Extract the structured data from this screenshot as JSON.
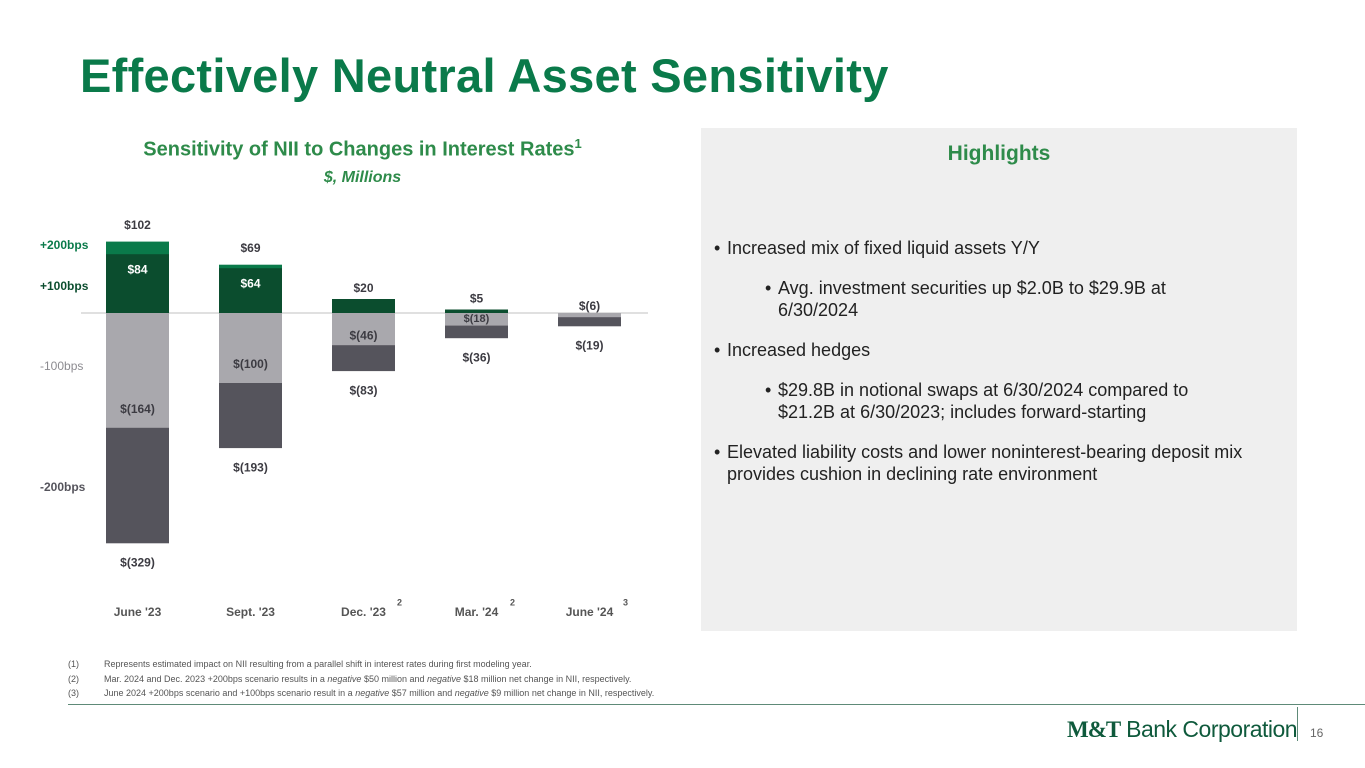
{
  "title": "Effectively Neutral Asset Sensitivity",
  "chart_data": {
    "type": "bar",
    "title": "Sensitivity of NII to Changes in Interest Rates",
    "title_footnote": "1",
    "subtitle": "$, Millions",
    "categories": [
      "June '23",
      "Sept. '23",
      "Dec. '23",
      "Mar. '24",
      "June '24"
    ],
    "category_footnotes": [
      null,
      null,
      "2",
      "2",
      "3"
    ],
    "ylim": [
      -360,
      110
    ],
    "series": [
      {
        "name": "+200bps",
        "color": "#0a7a4a",
        "values": [
          102,
          69,
          null,
          null,
          null
        ],
        "value_labels": [
          "$102",
          "$69",
          null,
          null,
          null
        ]
      },
      {
        "name": "+100bps",
        "color": "#0b4d2e",
        "values": [
          84,
          64,
          20,
          5,
          null
        ],
        "value_labels": [
          "$84",
          "$64",
          "$20",
          "$5",
          null
        ]
      },
      {
        "name": "-100bps",
        "color": "#a9a8ad",
        "values": [
          -164,
          -100,
          -46,
          -18,
          -6
        ],
        "value_labels": [
          "$(164)",
          "$(100)",
          "$(46)",
          "$(18)",
          "$(6)"
        ]
      },
      {
        "name": "-200bps",
        "color": "#55545c",
        "values": [
          -329,
          -193,
          -83,
          -36,
          -19
        ],
        "value_labels": [
          "$(329)",
          "$(193)",
          "$(83)",
          "$(36)",
          "$(19)"
        ]
      }
    ]
  },
  "highlights": {
    "title": "Highlights",
    "bullets": [
      {
        "level": 1,
        "text": "Increased mix of fixed liquid assets Y/Y"
      },
      {
        "level": 2,
        "text": "Avg. investment securities up $2.0B to $29.9B at 6/30/2024"
      },
      {
        "level": 1,
        "text": "Increased hedges"
      },
      {
        "level": 2,
        "text": "$29.8B in notional swaps at 6/30/2024 compared to $21.2B at 6/30/2023; includes forward-starting"
      },
      {
        "level": 1,
        "text": "Elevated liability costs and lower noninterest-bearing deposit mix provides cushion in declining rate environment"
      }
    ]
  },
  "footnotes": [
    {
      "number": "(1)",
      "parts": [
        "Represents estimated impact on NII resulting from a parallel shift in interest rates during first modeling year."
      ]
    },
    {
      "number": "(2)",
      "parts": [
        "Mar. 2024 and Dec. 2023 +200bps scenario results in a ",
        "negative",
        " $50 million and ",
        "negative",
        " $18 million net change in NII, respectively."
      ]
    },
    {
      "number": "(3)",
      "parts": [
        "June 2024 +200bps scenario and +100bps scenario result in a ",
        "negative",
        " $57 million and ",
        "negative",
        " $9 million net change in NII, respectively."
      ]
    }
  ],
  "footer": {
    "logo_mark": "M&T",
    "logo_text": "Bank Corporation",
    "page_number": "16"
  }
}
